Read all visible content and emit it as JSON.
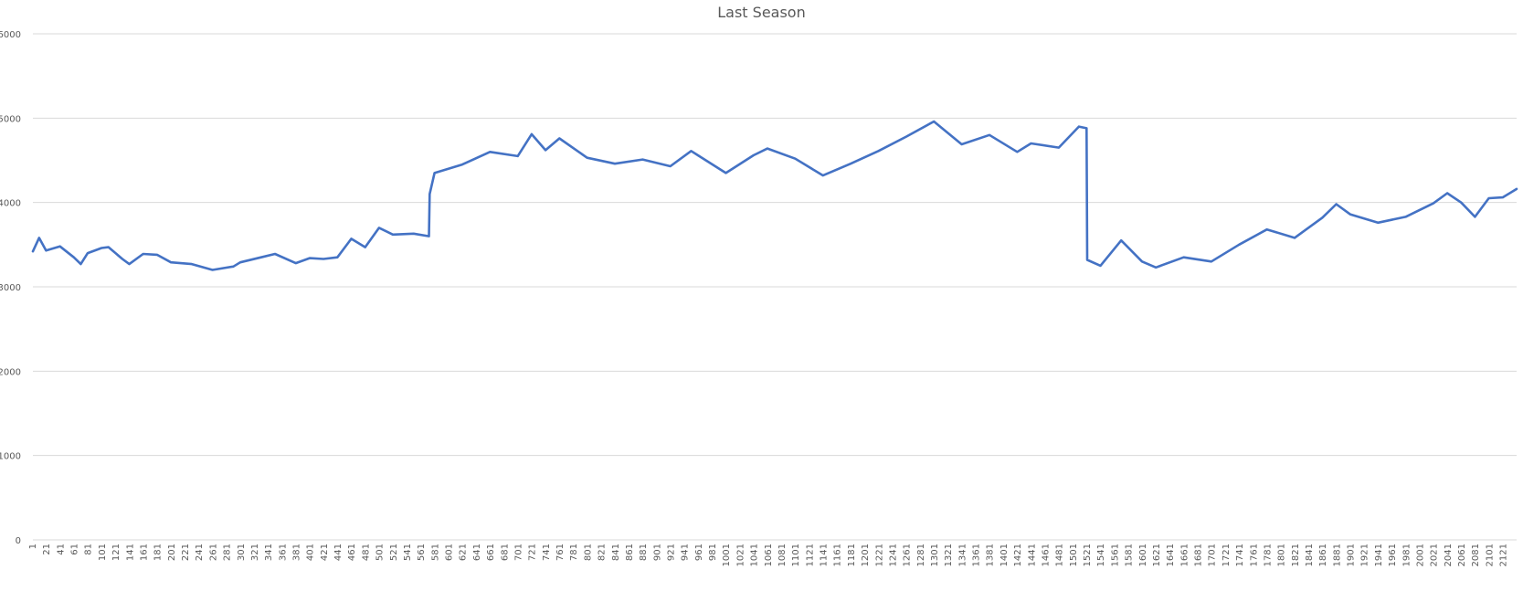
{
  "chart_data": {
    "type": "line",
    "title": "Last Season",
    "xlabel": "",
    "ylabel": "",
    "ylim": [
      0,
      6000
    ],
    "yticks": [
      0,
      1000,
      2000,
      3000,
      4000,
      5000,
      6000
    ],
    "x_start": 1,
    "x_end": 2140,
    "x_tick_step": 20,
    "grid": true,
    "legend": "none",
    "colors": {
      "series": "#4472C4",
      "grid": "#d9d9d9",
      "text": "#595959"
    },
    "series": [
      {
        "x": [
          1,
          10,
          20,
          40,
          60,
          70,
          80,
          100,
          110,
          130,
          140,
          160,
          180,
          200,
          230,
          260,
          290,
          300,
          330,
          350,
          380,
          400,
          420,
          440,
          460,
          480,
          500,
          520,
          550,
          572,
          573,
          580,
          620,
          660,
          700,
          720,
          740,
          760,
          800,
          840,
          880,
          920,
          950,
          1000,
          1040,
          1060,
          1100,
          1140,
          1180,
          1220,
          1260,
          1300,
          1340,
          1380,
          1420,
          1440,
          1480,
          1509,
          1520,
          1521,
          1540,
          1570,
          1600,
          1620,
          1660,
          1700,
          1740,
          1780,
          1820,
          1860,
          1880,
          1900,
          1940,
          1980,
          2020,
          2040,
          2060,
          2080,
          2100,
          2120,
          2140
        ],
        "values": [
          3420,
          3580,
          3430,
          3480,
          3350,
          3270,
          3400,
          3460,
          3470,
          3330,
          3270,
          3390,
          3380,
          3290,
          3270,
          3200,
          3240,
          3290,
          3350,
          3390,
          3280,
          3340,
          3330,
          3350,
          3570,
          3470,
          3700,
          3620,
          3630,
          3600,
          4100,
          4350,
          4450,
          4600,
          4550,
          4810,
          4620,
          4760,
          4530,
          4460,
          4510,
          4430,
          4610,
          4350,
          4560,
          4640,
          4520,
          4320,
          4460,
          4610,
          4780,
          4960,
          4690,
          4800,
          4600,
          4700,
          4650,
          4900,
          4880,
          3320,
          3250,
          3550,
          3300,
          3230,
          3350,
          3300,
          3500,
          3680,
          3580,
          3820,
          3980,
          3860,
          3760,
          3830,
          3990,
          4110,
          4000,
          3830,
          4050,
          4060,
          4160
        ]
      }
    ]
  }
}
